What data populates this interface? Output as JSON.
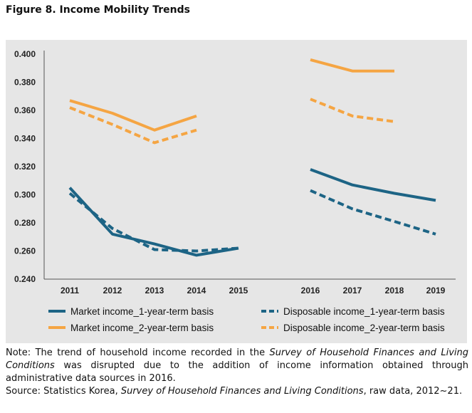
{
  "figure_title": "Figure 8. Income Mobility Trends",
  "note": {
    "prefix": "Note: The trend of household income recorded in the ",
    "survey_name": "Survey of Household Finances and Living Conditions",
    "suffix": " was disrupted due to the addition of income information obtained through administrative data sources in 2016."
  },
  "source": {
    "prefix": "Source: Statistics Korea, ",
    "survey_name": "Survey of Household Finances and Living Conditions",
    "suffix": ", raw data, 2012~21."
  },
  "colors": {
    "panel_bg": "#e6e6e6",
    "market_1yr": "#1d6485",
    "disposable_1yr": "#1d6485",
    "market_2yr": "#f5a543",
    "disposable_2yr": "#f5a543"
  },
  "chart_data": {
    "type": "line",
    "title": "",
    "xlabel": "",
    "ylabel": "",
    "categories": [
      "2011",
      "2012",
      "2013",
      "2014",
      "2015",
      "2016",
      "2017",
      "2018",
      "2019"
    ],
    "ylim": [
      0.24,
      0.4
    ],
    "yticks": [
      "0.400",
      "0.380",
      "0.360",
      "0.340",
      "0.320",
      "0.300",
      "0.280",
      "0.260",
      "0.240"
    ],
    "series": [
      {
        "name": "Market income_1-year-term basis",
        "style": "solid",
        "color": "#1d6485",
        "values": [
          0.305,
          0.272,
          0.265,
          0.257,
          0.262,
          0.318,
          0.307,
          0.301,
          0.296
        ]
      },
      {
        "name": "Disposable income_1-year-term basis",
        "style": "dashed",
        "color": "#1d6485",
        "values": [
          0.301,
          0.276,
          0.261,
          0.26,
          0.262,
          0.303,
          0.29,
          0.281,
          0.272
        ]
      },
      {
        "name": "Market income_2-year-term basis",
        "style": "solid",
        "color": "#f5a543",
        "values": [
          0.367,
          0.358,
          0.346,
          0.356,
          null,
          0.396,
          0.388,
          0.388,
          null
        ]
      },
      {
        "name": "Disposable income_2-year-term basis",
        "style": "dashed",
        "color": "#f5a543",
        "values": [
          0.362,
          0.35,
          0.337,
          0.346,
          null,
          0.368,
          0.356,
          0.352,
          null
        ]
      }
    ],
    "break_between": [
      "2015",
      "2016"
    ],
    "grid": false,
    "legend_position": "bottom"
  }
}
